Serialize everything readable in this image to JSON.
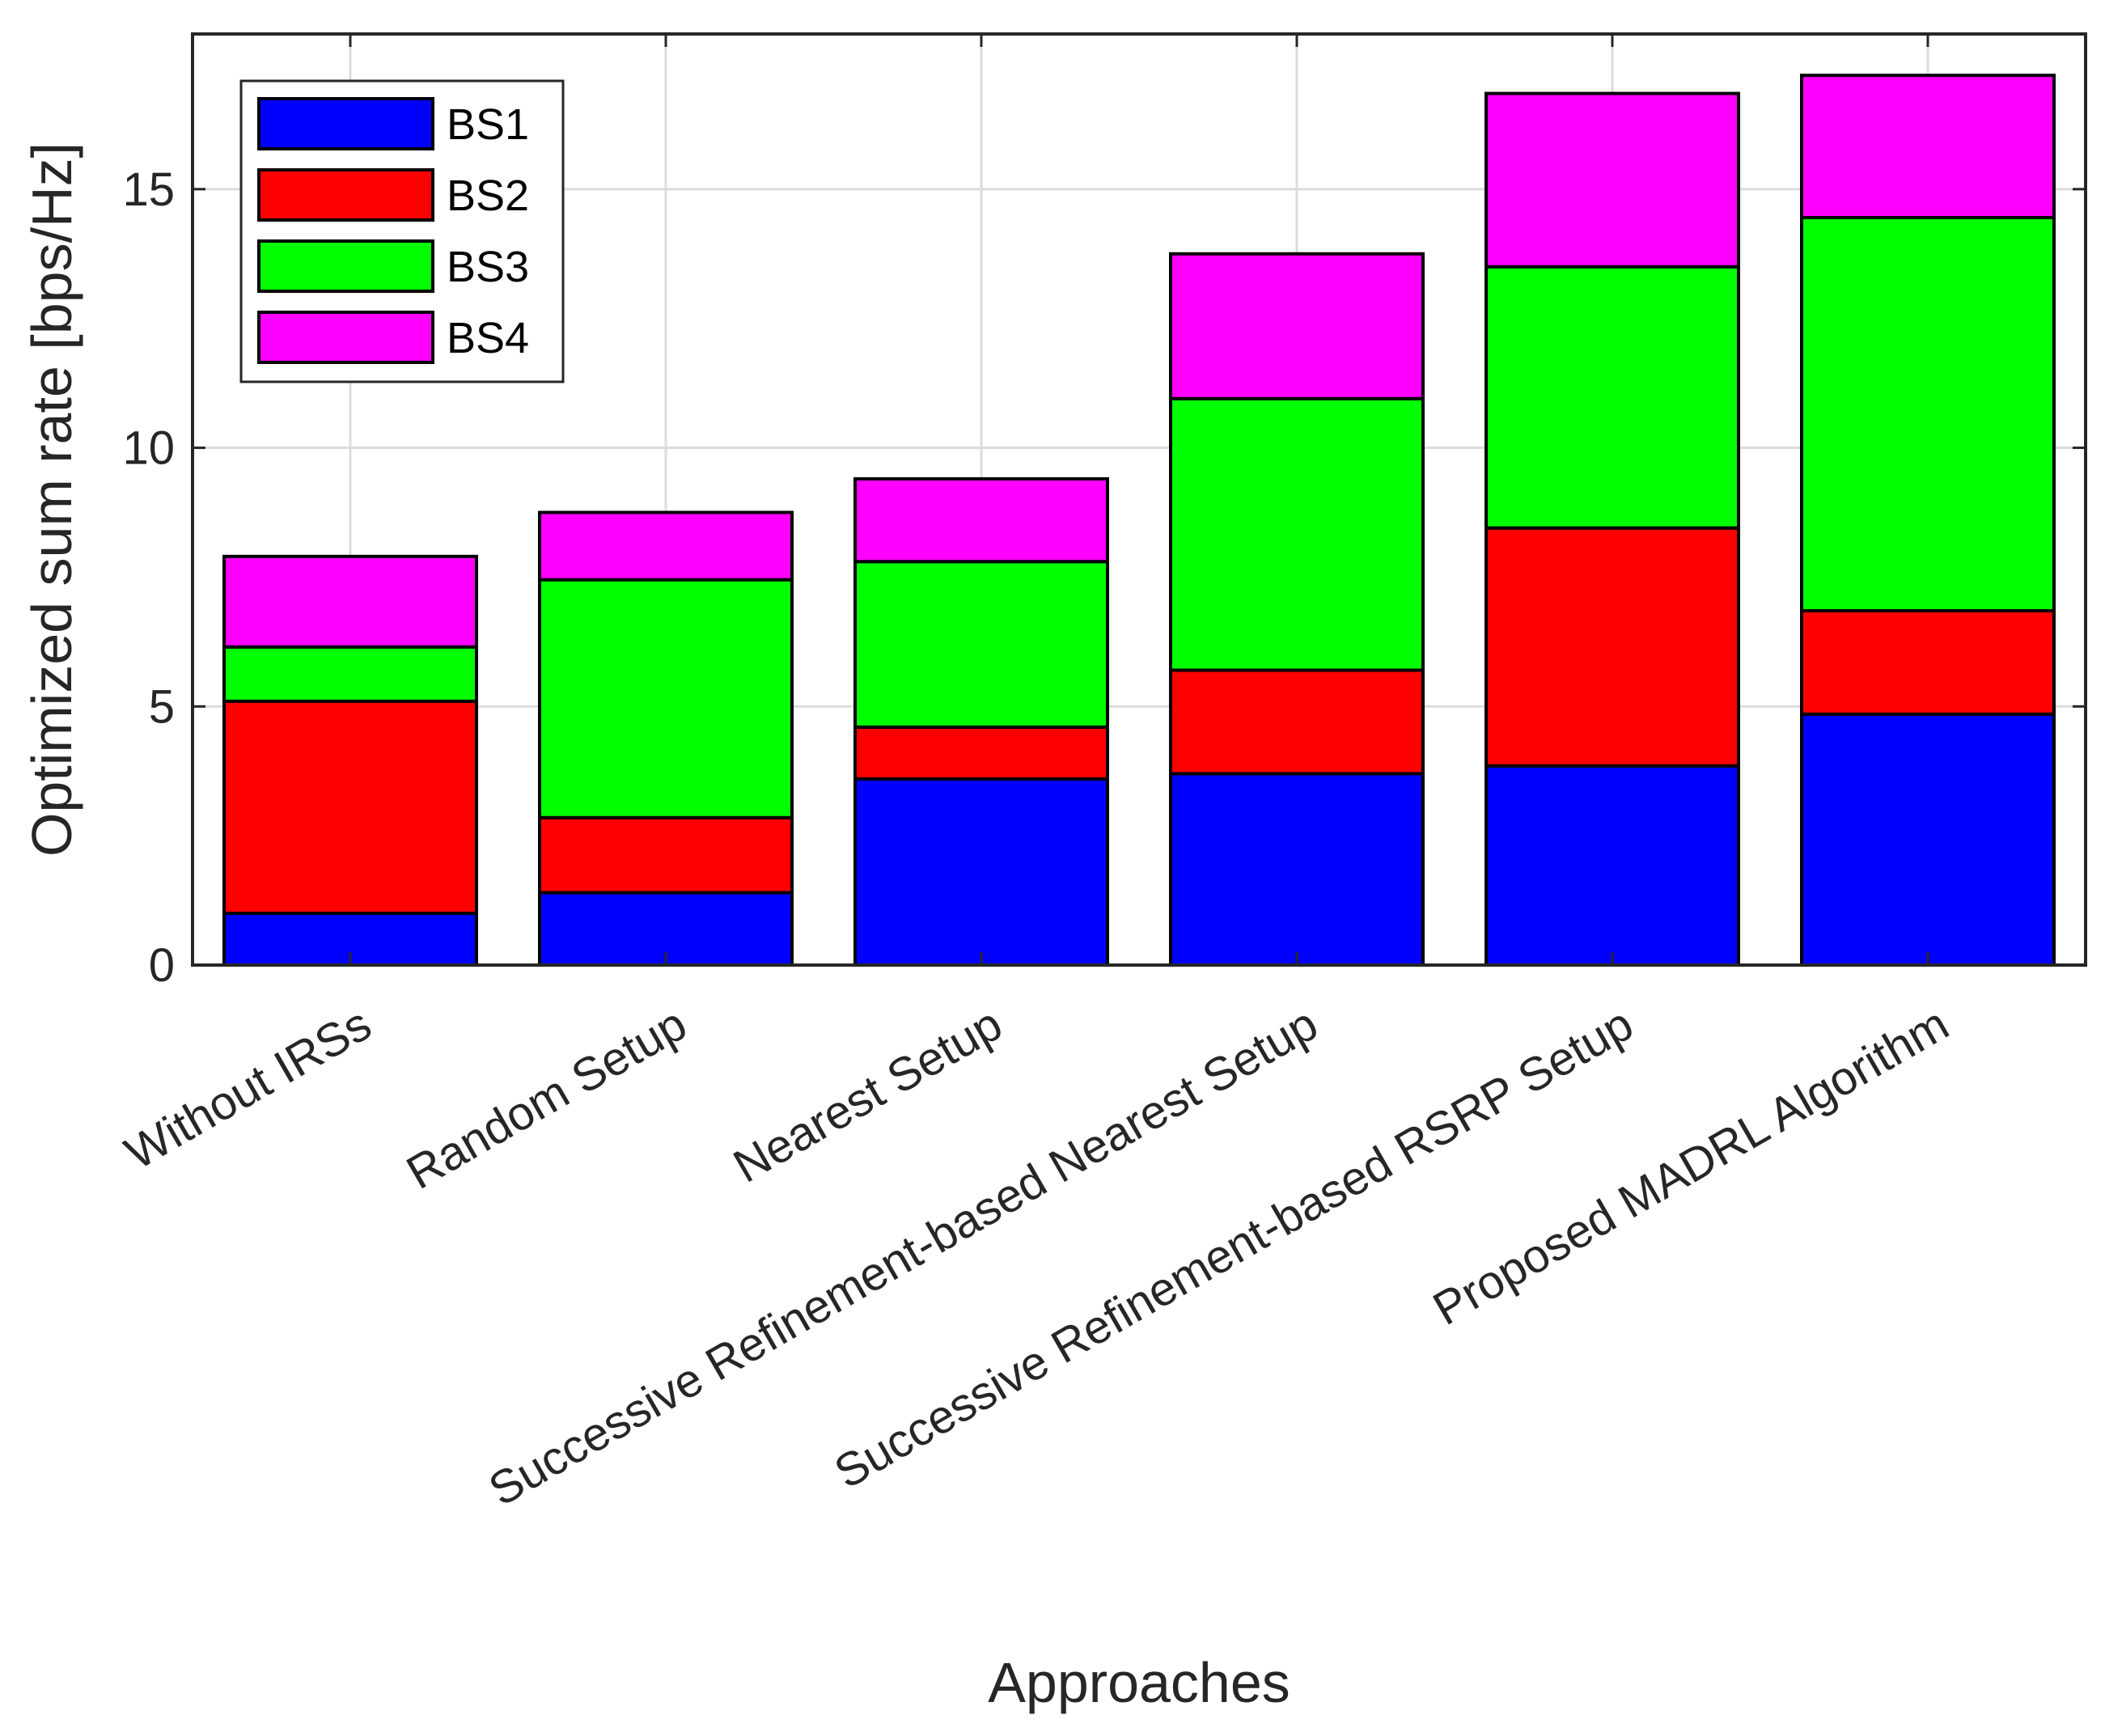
{
  "chart_data": {
    "type": "bar",
    "stacked": true,
    "title": "",
    "xlabel": "Approaches",
    "ylabel": "Optimized sum rate [bps/Hz]",
    "ylim": [
      0,
      18
    ],
    "yticks": [
      0,
      5,
      10,
      15
    ],
    "grid": true,
    "legend_position": "top-left",
    "categories": [
      "Without IRSs",
      "Random Setup",
      "Nearest Setup",
      "Successive Refinement-based Nearest Setup",
      "Successive Refinement-based RSRP Setup",
      "Proposed MADRL Algorithm"
    ],
    "series": [
      {
        "name": "BS1",
        "color": "#0000ff",
        "values": [
          1.0,
          1.4,
          3.6,
          3.7,
          3.85,
          4.85
        ]
      },
      {
        "name": "BS2",
        "color": "#ff0000",
        "values": [
          4.1,
          1.45,
          1.0,
          2.0,
          4.6,
          2.0
        ]
      },
      {
        "name": "BS3",
        "color": "#00ff00",
        "values": [
          1.05,
          4.6,
          3.2,
          5.25,
          5.05,
          7.6
        ]
      },
      {
        "name": "BS4",
        "color": "#ff00ff",
        "values": [
          1.75,
          1.3,
          1.6,
          2.8,
          3.35,
          2.75
        ]
      }
    ]
  }
}
